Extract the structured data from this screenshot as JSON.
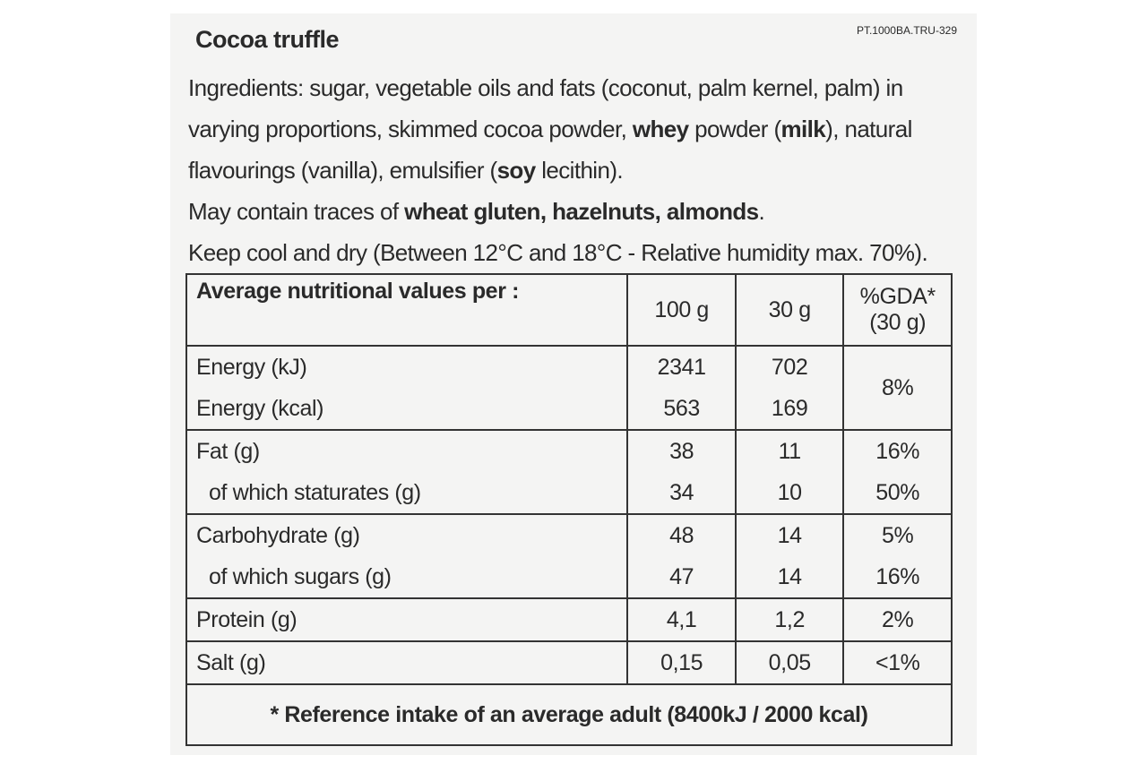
{
  "title": "Cocoa truffle",
  "code": "PT.1000BA.TRU-329",
  "ingredients": [
    {
      "text": "Ingredients: sugar, vegetable oils and fats (coconut, palm kernel, palm) in varying proportions, skimmed cocoa powder, ",
      "bold": false
    },
    {
      "text": "whey",
      "bold": true
    },
    {
      "text": " powder (",
      "bold": false
    },
    {
      "text": "milk",
      "bold": true
    },
    {
      "text": "), natural flavourings (vanilla), emulsifier (",
      "bold": false
    },
    {
      "text": "soy",
      "bold": true
    },
    {
      "text": " lecithin).",
      "bold": false
    }
  ],
  "allergens": [
    {
      "text": "May contain traces of ",
      "bold": false
    },
    {
      "text": "wheat gluten, hazelnuts, almonds",
      "bold": true
    },
    {
      "text": ".",
      "bold": false
    }
  ],
  "storage": "Keep cool and dry (Between 12°C and 18°C - Relative humidity max. 70%).",
  "table": {
    "header": [
      "Average nutritional values per :",
      "100 g",
      "30 g",
      "%GDA* (30 g)"
    ],
    "groups": [
      [
        [
          "Energy (kJ)",
          "2341",
          "702",
          "8%"
        ],
        [
          "Energy (kcal)",
          "563",
          "169"
        ]
      ],
      [
        [
          "Fat (g)",
          "38",
          "11",
          "16%"
        ],
        [
          "of which staturates (g)",
          "34",
          "10",
          "50%"
        ]
      ],
      [
        [
          "Carbohydrate (g)",
          "48",
          "14",
          "5%"
        ],
        [
          "of which sugars (g)",
          "47",
          "14",
          "16%"
        ]
      ],
      [
        [
          "Protein (g)",
          "4,1",
          "1,2",
          "2%"
        ]
      ],
      [
        [
          "Salt (g)",
          "0,15",
          "0,05",
          "<1%"
        ]
      ]
    ],
    "footnote": "* Reference intake of an average adult (8400kJ / 2000 kcal)"
  }
}
